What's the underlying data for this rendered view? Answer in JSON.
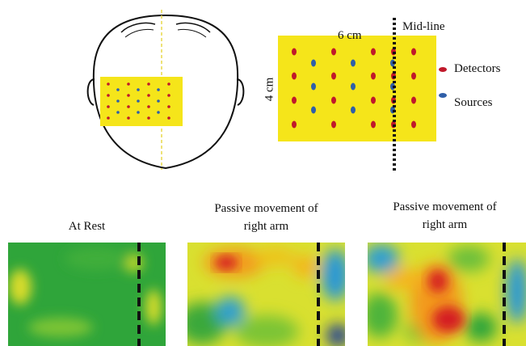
{
  "probe": {
    "width_label": "6 cm",
    "height_label": "4 cm",
    "midline_label": "Mid-line"
  },
  "legend": {
    "detectors_label": "Detectors",
    "sources_label": "Sources",
    "detector_color": "#c0182a",
    "source_color": "#2f5fa8"
  },
  "colors": {
    "probe_pad": "#f5e51a"
  },
  "panels": [
    {
      "title_line1": "At Rest",
      "title_line2": ""
    },
    {
      "title_line1": "Passive movement of",
      "title_line2": "right arm"
    },
    {
      "title_line1": "Passive movement of",
      "title_line2": "right arm"
    }
  ]
}
